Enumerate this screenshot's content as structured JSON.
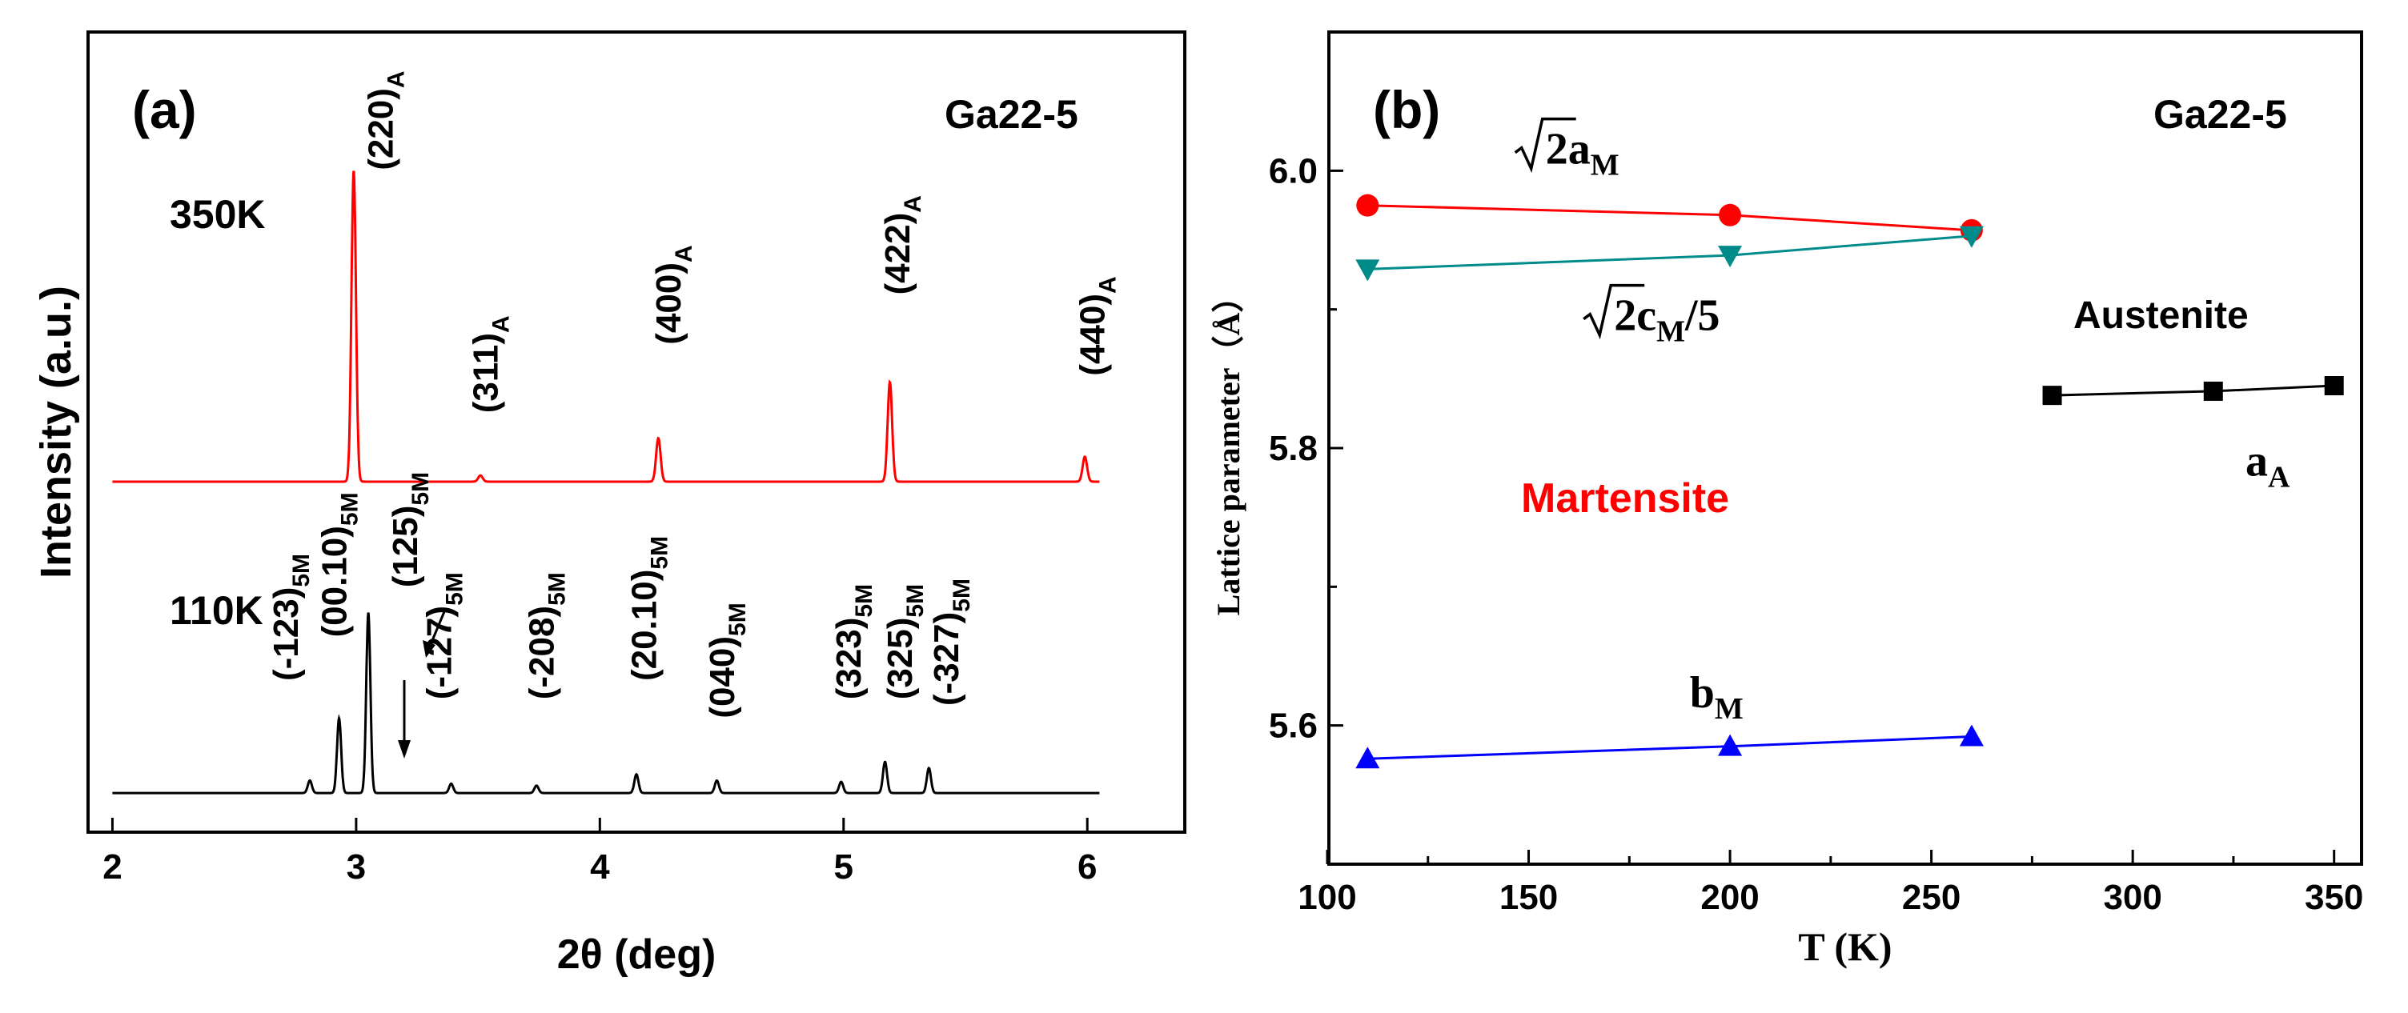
{
  "chart_data": [
    {
      "panel": "a",
      "type": "line",
      "panel_label": "(a)",
      "sample": "Ga22-5",
      "xlabel": "2θ (deg)",
      "ylabel": "Intensity (a.u.)",
      "xlim": [
        1.9,
        6.4
      ],
      "ylim": [
        -0.05,
        1.1
      ],
      "xticks": [
        "2",
        "3",
        "4",
        "5",
        "6"
      ],
      "series": [
        {
          "name": "350K",
          "color": "#ff0000",
          "baseline": 0.5,
          "peaks": [
            {
              "x": 2.99,
              "h": 0.5,
              "label": "(220)",
              "sub": "A",
              "lx": 3.15,
              "ly": 1.0
            },
            {
              "x": 3.51,
              "h": 0.01,
              "label": "(311)",
              "sub": "A",
              "lx": 3.58,
              "ly": 0.61
            },
            {
              "x": 4.24,
              "h": 0.07,
              "label": "(400)",
              "sub": "A",
              "lx": 4.33,
              "ly": 0.72
            },
            {
              "x": 5.19,
              "h": 0.16,
              "label": "(422)",
              "sub": "A",
              "lx": 5.27,
              "ly": 0.8
            },
            {
              "x": 5.99,
              "h": 0.04,
              "label": "(440)",
              "sub": "A",
              "lx": 6.07,
              "ly": 0.67
            }
          ]
        },
        {
          "name": "110K",
          "color": "#000000",
          "baseline": 0.0,
          "peaks": [
            {
              "x": 2.81,
              "h": 0.02,
              "label": "(-123)",
              "sub": "5M",
              "lx": 2.76,
              "ly": 0.18
            },
            {
              "x": 2.93,
              "h": 0.12,
              "label": "(00.10)",
              "sub": "5M",
              "lx": 2.96,
              "ly": 0.25
            },
            {
              "x": 3.05,
              "h": 0.29,
              "label": "(125)",
              "sub": "5M",
              "lx": 3.25,
              "ly": 0.33
            },
            {
              "x": 3.39,
              "h": 0.015,
              "label": "(-127)",
              "sub": "5M",
              "lx": 3.39,
              "ly": 0.15
            },
            {
              "x": 3.74,
              "h": 0.012,
              "label": "(-208)",
              "sub": "5M",
              "lx": 3.81,
              "ly": 0.15
            },
            {
              "x": 4.15,
              "h": 0.03,
              "label": "(20.10)",
              "sub": "5M",
              "lx": 4.23,
              "ly": 0.18
            },
            {
              "x": 4.48,
              "h": 0.02,
              "label": "(040)",
              "sub": "5M",
              "lx": 4.55,
              "ly": 0.12
            },
            {
              "x": 4.99,
              "h": 0.018,
              "label": "(323)",
              "sub": "5M",
              "lx": 5.07,
              "ly": 0.15
            },
            {
              "x": 5.17,
              "h": 0.05,
              "label": "(325)",
              "sub": "5M",
              "lx": 5.28,
              "ly": 0.15
            },
            {
              "x": 5.35,
              "h": 0.04,
              "label": "(-327)",
              "sub": "5M",
              "lx": 5.47,
              "ly": 0.14
            }
          ]
        }
      ]
    },
    {
      "panel": "b",
      "type": "line",
      "panel_label": "(b)",
      "sample": "Ga22-5",
      "xlabel": "T (K)",
      "ylabel": "Lattice parameter（Å）",
      "xlim": [
        100,
        360
      ],
      "ylim": [
        5.5,
        6.1
      ],
      "xticks": [
        100,
        150,
        200,
        250,
        300,
        350
      ],
      "yticks": [
        5.6,
        5.8,
        6.0
      ],
      "ytick_labels": [
        "5.6",
        "5.8",
        "6.0"
      ],
      "region_labels": {
        "martensite": "Martensite",
        "austenite": "Austenite"
      },
      "series": [
        {
          "name": "√2a_M",
          "label_pre": "2a",
          "label_sub": "M",
          "label_post": "",
          "label_at": [
            155,
            6.005
          ],
          "color": "#ff0000",
          "marker": "circle",
          "x": [
            110,
            200,
            260
          ],
          "y": [
            5.975,
            5.968,
            5.957
          ]
        },
        {
          "name": "√2c_M/5",
          "label_pre": "2c",
          "label_sub": "M",
          "label_post": "/5",
          "label_at": [
            172,
            5.885
          ],
          "color": "#008b8b",
          "marker": "triangle-down",
          "x": [
            110,
            200,
            260
          ],
          "y": [
            5.929,
            5.939,
            5.953
          ]
        },
        {
          "name": "b_M",
          "label_pre": "b",
          "label_sub": "M",
          "label_post": "",
          "label_at": [
            190,
            5.613
          ],
          "color": "#0000ff",
          "marker": "triangle-up",
          "x": [
            110,
            200,
            260
          ],
          "y": [
            5.576,
            5.585,
            5.592
          ]
        },
        {
          "name": "a_A",
          "label_pre": "a",
          "label_sub": "A",
          "label_post": "",
          "label_at": [
            328,
            5.78
          ],
          "color": "#000000",
          "marker": "square",
          "x": [
            280,
            320,
            350
          ],
          "y": [
            5.838,
            5.841,
            5.845
          ]
        }
      ]
    }
  ]
}
